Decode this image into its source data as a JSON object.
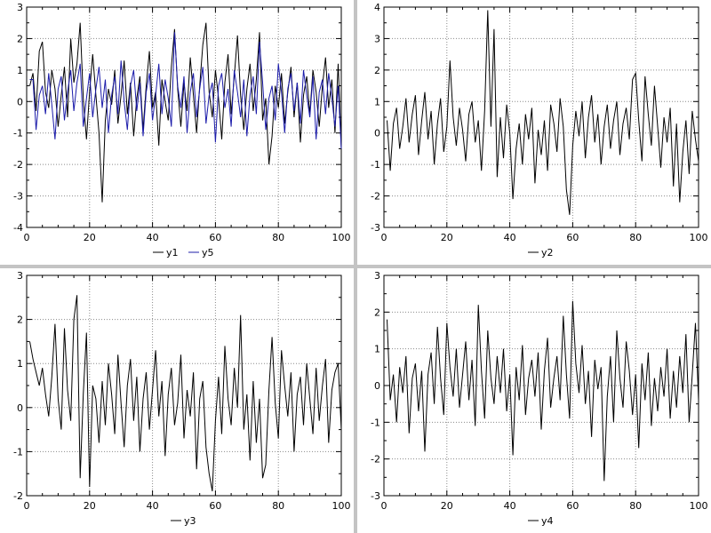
{
  "figure": {
    "rows": 2,
    "cols": 2,
    "background": "#ffffff",
    "divider_color": "#c4c4c4",
    "grid_style": "dotted",
    "grid_color": "#8a8a8a",
    "frame_color": "#000000"
  },
  "chart_data": [
    {
      "id": "y1-y5",
      "type": "line",
      "title": "",
      "xlabel": "",
      "ylabel": "",
      "xlim": [
        0,
        100
      ],
      "ylim": [
        -4,
        3
      ],
      "xticks": [
        0,
        20,
        40,
        60,
        80,
        100
      ],
      "yticks": [
        -4,
        -3,
        -2,
        -1,
        0,
        1,
        2,
        3
      ],
      "x_minor_step": 5,
      "y_minor_step": 0.5,
      "grid": "dotted",
      "legend_position": "bottom",
      "x_start": 1,
      "x_step": 1,
      "series": [
        {
          "name": "y1",
          "color": "#000000",
          "values": [
            0.5,
            0.9,
            -0.3,
            1.6,
            1.9,
            0.3,
            -0.2,
            1.0,
            0.4,
            -0.8,
            0.2,
            1.1,
            -0.5,
            2.0,
            0.6,
            1.2,
            2.5,
            0.1,
            -1.2,
            0.3,
            1.5,
            0.2,
            -1.0,
            -3.2,
            -0.6,
            0.4,
            -0.1,
            1.0,
            -0.7,
            0.2,
            1.3,
            -0.4,
            0.6,
            -1.1,
            0.1,
            0.8,
            -0.9,
            0.5,
            1.6,
            -0.2,
            0.3,
            -1.4,
            0.7,
            0.0,
            -0.6,
            1.1,
            2.3,
            0.4,
            -0.8,
            0.6,
            -0.3,
            1.4,
            0.2,
            -1.0,
            0.5,
            1.8,
            2.5,
            0.3,
            -0.5,
            1.0,
            0.1,
            -1.2,
            0.6,
            1.5,
            -0.4,
            0.8,
            2.1,
            0.2,
            -0.9,
            0.4,
            1.2,
            -0.3,
            0.7,
            2.2,
            -0.6,
            0.1,
            -2.0,
            -1.1,
            0.5,
            -0.2,
            0.9,
            -0.7,
            0.3,
            1.1,
            -0.5,
            0.6,
            -1.3,
            0.2,
            0.8,
            -0.4,
            1.0,
            0.3,
            -0.8,
            0.5,
            1.4,
            -0.2,
            0.7,
            -1.0,
            1.2,
            -1.5
          ]
        },
        {
          "name": "y5",
          "color": "#1c1caa",
          "values": [
            0.7,
            0.7,
            -0.9,
            0.2,
            0.5,
            -0.4,
            0.9,
            -0.1,
            -1.2,
            0.4,
            0.8,
            -0.6,
            0.3,
            1.0,
            -0.3,
            0.6,
            1.2,
            -0.8,
            0.1,
            0.9,
            -0.5,
            0.4,
            1.1,
            -0.2,
            0.7,
            -1.0,
            0.2,
            0.8,
            -0.4,
            1.3,
            0.0,
            -0.9,
            0.5,
            1.0,
            -0.3,
            0.6,
            -1.1,
            0.3,
            0.9,
            -0.6,
            0.2,
            1.2,
            -0.4,
            0.7,
            0.1,
            -0.8,
            2.2,
            0.5,
            -0.2,
            0.8,
            -1.0,
            0.3,
            0.9,
            -0.5,
            0.4,
            1.1,
            -0.7,
            0.2,
            0.6,
            -1.3,
            0.5,
            0.9,
            -0.2,
            0.4,
            -0.8,
            1.0,
            0.3,
            -0.5,
            0.7,
            -1.1,
            0.2,
            0.8,
            -0.4,
            1.9,
            0.6,
            -0.9,
            0.1,
            0.5,
            -0.6,
            1.2,
            0.3,
            -1.0,
            0.4,
            0.9,
            -0.3,
            0.6,
            -0.7,
            1.0,
            0.2,
            -0.5,
            0.8,
            -1.2,
            0.3,
            0.7,
            -0.4,
            0.9,
            0.1,
            -0.8,
            0.5,
            -1.5
          ]
        }
      ]
    },
    {
      "id": "y2",
      "type": "line",
      "title": "",
      "xlabel": "",
      "ylabel": "",
      "xlim": [
        0,
        100
      ],
      "ylim": [
        -3,
        4
      ],
      "xticks": [
        0,
        20,
        40,
        60,
        80,
        100
      ],
      "yticks": [
        -3,
        -2,
        -1,
        0,
        1,
        2,
        3,
        4
      ],
      "x_minor_step": 5,
      "y_minor_step": 0.5,
      "grid": "dotted",
      "legend_position": "bottom",
      "x_start": 1,
      "x_step": 1,
      "series": [
        {
          "name": "y2",
          "color": "#000000",
          "values": [
            0.4,
            -1.2,
            0.3,
            0.8,
            -0.5,
            0.2,
            1.1,
            -0.3,
            0.6,
            1.2,
            -0.7,
            0.4,
            1.3,
            -0.2,
            0.7,
            -1.0,
            0.3,
            1.1,
            -0.6,
            0.2,
            2.3,
            0.5,
            -0.4,
            0.8,
            0.1,
            -0.9,
            0.6,
            1.0,
            -0.3,
            0.4,
            -1.2,
            0.7,
            3.9,
            0.2,
            3.3,
            -1.4,
            0.5,
            -0.8,
            0.9,
            0.0,
            -2.1,
            -0.5,
            0.3,
            -1.0,
            0.6,
            -0.2,
            0.8,
            -1.6,
            0.1,
            -0.7,
            0.4,
            -1.2,
            0.9,
            0.3,
            -0.6,
            1.1,
            0.2,
            -1.8,
            -2.6,
            -0.4,
            0.7,
            -0.1,
            1.0,
            -0.8,
            0.5,
            1.2,
            -0.3,
            0.6,
            -1.0,
            0.2,
            0.9,
            -0.5,
            0.4,
            1.0,
            -0.7,
            0.3,
            0.8,
            -0.2,
            1.7,
            1.9,
            0.4,
            -0.9,
            1.8,
            0.6,
            -0.4,
            1.5,
            0.2,
            -1.1,
            0.5,
            -0.3,
            0.8,
            -1.7,
            0.3,
            -2.2,
            -0.6,
            0.4,
            -1.3,
            0.7,
            -0.2,
            -0.9
          ]
        }
      ]
    },
    {
      "id": "y3",
      "type": "line",
      "title": "",
      "xlabel": "",
      "ylabel": "",
      "xlim": [
        0,
        100
      ],
      "ylim": [
        -2,
        3
      ],
      "xticks": [
        0,
        20,
        40,
        60,
        80,
        100
      ],
      "yticks": [
        -2,
        -1,
        0,
        1,
        2,
        3
      ],
      "x_minor_step": 5,
      "y_minor_step": 0.5,
      "grid": "dotted",
      "legend_position": "bottom",
      "x_start": 1,
      "x_step": 1,
      "series": [
        {
          "name": "y3",
          "color": "#000000",
          "values": [
            1.5,
            1.1,
            0.8,
            0.5,
            0.9,
            0.3,
            -0.2,
            0.7,
            1.9,
            0.2,
            -0.5,
            1.8,
            0.4,
            -0.3,
            2.0,
            2.55,
            -1.6,
            0.3,
            1.7,
            -1.8,
            0.5,
            0.2,
            -0.8,
            0.6,
            -0.4,
            1.0,
            0.3,
            -0.6,
            1.2,
            0.1,
            -0.9,
            0.5,
            1.1,
            -0.3,
            0.7,
            -1.0,
            0.2,
            0.8,
            -0.5,
            0.4,
            1.3,
            -0.2,
            0.6,
            -1.1,
            0.3,
            0.9,
            -0.4,
            0.1,
            1.2,
            -0.7,
            0.4,
            -0.2,
            0.8,
            -1.4,
            0.2,
            0.6,
            -0.9,
            -1.5,
            -1.9,
            -0.3,
            0.7,
            -0.6,
            1.4,
            0.2,
            -0.4,
            0.9,
            0.0,
            2.1,
            -0.5,
            0.3,
            -1.2,
            0.6,
            -0.8,
            0.2,
            -1.6,
            -1.3,
            0.4,
            1.6,
            0.1,
            -0.7,
            1.3,
            0.5,
            -0.2,
            0.8,
            -1.0,
            0.3,
            0.7,
            -0.4,
            1.0,
            0.2,
            -0.6,
            0.9,
            -0.3,
            0.5,
            1.1,
            -0.8,
            0.4,
            0.8,
            1.0,
            -0.5
          ]
        }
      ]
    },
    {
      "id": "y4",
      "type": "line",
      "title": "",
      "xlabel": "",
      "ylabel": "",
      "xlim": [
        0,
        100
      ],
      "ylim": [
        -3,
        3
      ],
      "xticks": [
        0,
        20,
        40,
        60,
        80,
        100
      ],
      "yticks": [
        -3,
        -2,
        -1,
        0,
        1,
        2,
        3
      ],
      "x_minor_step": 5,
      "y_minor_step": 0.5,
      "grid": "dotted",
      "legend_position": "bottom",
      "x_start": 1,
      "x_step": 1,
      "series": [
        {
          "name": "y4",
          "color": "#000000",
          "values": [
            1.8,
            -0.4,
            0.3,
            -1.0,
            0.5,
            -0.2,
            0.8,
            -1.3,
            0.2,
            0.6,
            -0.7,
            0.4,
            -1.8,
            0.3,
            0.9,
            -0.5,
            1.6,
            0.2,
            -0.8,
            1.7,
            0.5,
            -0.3,
            1.0,
            -0.6,
            0.3,
            1.2,
            -0.4,
            0.7,
            -1.1,
            2.2,
            0.4,
            -0.9,
            1.5,
            0.2,
            -0.5,
            0.8,
            -0.2,
            1.0,
            -0.7,
            0.3,
            -1.9,
            0.5,
            -0.4,
            1.1,
            -0.8,
            0.2,
            0.7,
            -0.3,
            0.9,
            -1.2,
            0.4,
            1.3,
            -0.6,
            0.2,
            0.8,
            -0.4,
            1.9,
            0.3,
            -0.9,
            2.3,
            0.6,
            -0.2,
            1.1,
            -0.5,
            0.4,
            -1.4,
            0.7,
            -0.1,
            0.5,
            -2.6,
            -0.3,
            0.8,
            -1.0,
            1.5,
            0.2,
            -0.6,
            1.2,
            0.4,
            -0.8,
            0.3,
            -1.7,
            0.6,
            -0.4,
            0.9,
            -1.1,
            0.2,
            -0.7,
            0.5,
            -0.3,
            1.0,
            -0.9,
            0.4,
            -0.6,
            0.8,
            -0.2,
            1.4,
            -1.0,
            0.3,
            1.7,
            -0.4
          ]
        }
      ]
    }
  ]
}
